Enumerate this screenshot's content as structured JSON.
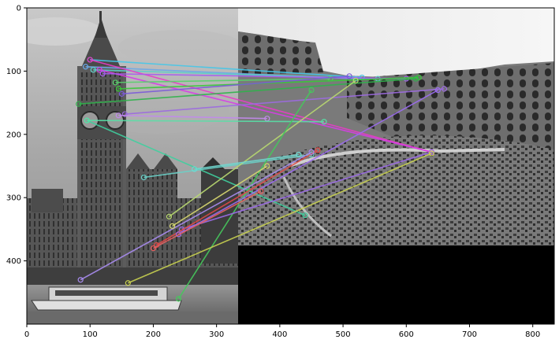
{
  "figure": {
    "x_axis": {
      "range": [
        0,
        834
      ],
      "ticks": [
        0,
        100,
        200,
        300,
        400,
        500,
        600,
        700,
        800
      ],
      "tick_labels": [
        "0",
        "100",
        "200",
        "300",
        "400",
        "500",
        "600",
        "700",
        "800"
      ]
    },
    "y_axis": {
      "range": [
        0,
        500
      ],
      "inverted": true,
      "ticks": [
        0,
        100,
        200,
        300,
        400
      ],
      "tick_labels": [
        "0",
        "100",
        "200",
        "300",
        "400"
      ]
    },
    "left_image": {
      "subject": "Big Ben clock tower and Houses of Parliament, grayscale photo",
      "extent": {
        "x": [
          0,
          334
        ],
        "y": [
          0,
          500
        ]
      }
    },
    "right_image": {
      "subject": "Colosseum interior, grayscale photo",
      "extent": {
        "x": [
          334,
          834
        ],
        "y": [
          0,
          375
        ]
      },
      "padding_color": "#000000"
    },
    "matches": [
      {
        "p1": [
          100,
          82
        ],
        "p2": [
          530,
          110
        ],
        "color": "#46c6e8"
      },
      {
        "p1": [
          93,
          93
        ],
        "p2": [
          520,
          112
        ],
        "color": "#6aa8e8"
      },
      {
        "p1": [
          105,
          98
        ],
        "p2": [
          555,
          112
        ],
        "color": "#5bd0c8"
      },
      {
        "p1": [
          100,
          82
        ],
        "p2": [
          640,
          228
        ],
        "color": "#e83cc8"
      },
      {
        "p1": [
          115,
          98
        ],
        "p2": [
          640,
          228
        ],
        "color": "#d83ce8"
      },
      {
        "p1": [
          120,
          104
        ],
        "p2": [
          600,
          112
        ],
        "color": "#a85cf0"
      },
      {
        "p1": [
          140,
          118
        ],
        "p2": [
          480,
          112
        ],
        "color": "#57d06a"
      },
      {
        "p1": [
          145,
          128
        ],
        "p2": [
          620,
          110
        ],
        "color": "#38c838"
      },
      {
        "p1": [
          150,
          136
        ],
        "p2": [
          510,
          108
        ],
        "color": "#7b5ad8"
      },
      {
        "p1": [
          82,
          152
        ],
        "p2": [
          615,
          112
        ],
        "color": "#2fb24a"
      },
      {
        "p1": [
          155,
          168
        ],
        "p2": [
          660,
          128
        ],
        "color": "#9c6ae0"
      },
      {
        "p1": [
          145,
          170
        ],
        "p2": [
          380,
          175
        ],
        "color": "#c28aec"
      },
      {
        "p1": [
          95,
          178
        ],
        "p2": [
          440,
          328
        ],
        "color": "#3fcf9e"
      },
      {
        "p1": [
          95,
          178
        ],
        "p2": [
          470,
          180
        ],
        "color": "#58e0a6"
      },
      {
        "p1": [
          185,
          268
        ],
        "p2": [
          450,
          232
        ],
        "color": "#6ad0c8"
      },
      {
        "p1": [
          225,
          330
        ],
        "p2": [
          520,
          115
        ],
        "color": "#b8d870"
      },
      {
        "p1": [
          240,
          460
        ],
        "p2": [
          450,
          130
        ],
        "color": "#46c85c"
      },
      {
        "p1": [
          245,
          350
        ],
        "p2": [
          640,
          228
        ],
        "color": "#9b6ae8"
      },
      {
        "p1": [
          205,
          375
        ],
        "p2": [
          460,
          225
        ],
        "color": "#e04848"
      },
      {
        "p1": [
          160,
          435
        ],
        "p2": [
          640,
          230
        ],
        "color": "#c8d050"
      },
      {
        "p1": [
          85,
          430
        ],
        "p2": [
          450,
          228
        ],
        "color": "#a98cf0"
      },
      {
        "p1": [
          240,
          358
        ],
        "p2": [
          650,
          130
        ],
        "color": "#9b6cf0"
      },
      {
        "p1": [
          230,
          345
        ],
        "p2": [
          380,
          250
        ],
        "color": "#d8d870"
      },
      {
        "p1": [
          265,
          255
        ],
        "p2": [
          430,
          232
        ],
        "color": "#70d8d0"
      },
      {
        "p1": [
          200,
          380
        ],
        "p2": [
          370,
          290
        ],
        "color": "#e86060"
      }
    ]
  }
}
